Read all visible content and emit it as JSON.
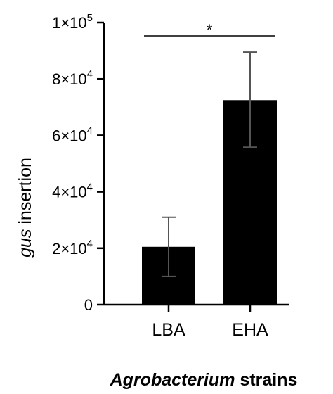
{
  "chart_data": {
    "type": "bar",
    "categories": [
      "LBA",
      "EHA"
    ],
    "values": [
      20500,
      72500
    ],
    "error_low": [
      10000,
      55800
    ],
    "error_high": [
      31000,
      89500
    ],
    "ylim": [
      0,
      100000
    ],
    "yticks": [
      0,
      20000,
      40000,
      60000,
      80000,
      100000
    ],
    "ytick_labels": [
      {
        "mantissa": "0",
        "exponent": ""
      },
      {
        "mantissa": "2×10",
        "exponent": "4"
      },
      {
        "mantissa": "4×10",
        "exponent": "4"
      },
      {
        "mantissa": "6×10",
        "exponent": "4"
      },
      {
        "mantissa": "8×10",
        "exponent": "4"
      },
      {
        "mantissa": "1×10",
        "exponent": "5"
      }
    ],
    "ylabel_italic": "gus",
    "ylabel_rest": " insertion",
    "xlabel_italic": "Agrobacterium",
    "xlabel_rest": " strains",
    "significance": {
      "between": [
        "LBA",
        "EHA"
      ],
      "label": "*"
    },
    "bar_color": "#000000",
    "grid": false
  }
}
